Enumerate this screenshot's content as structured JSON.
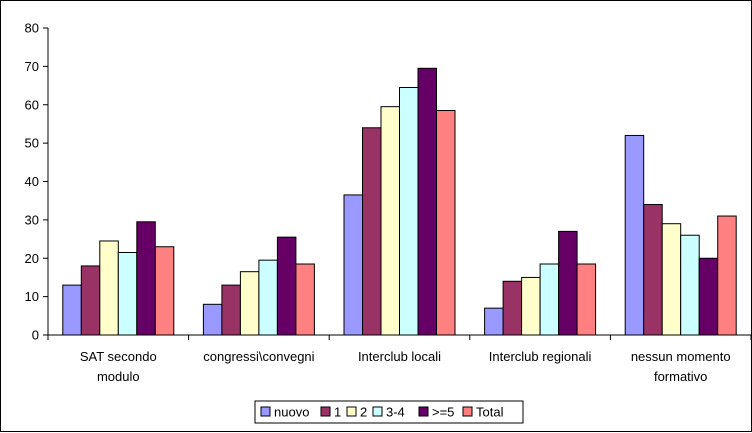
{
  "chart_data": {
    "type": "bar",
    "title": "",
    "xlabel": "",
    "ylabel": "",
    "ylim": [
      0,
      80
    ],
    "yticks": [
      0,
      10,
      20,
      30,
      40,
      50,
      60,
      70,
      80
    ],
    "grid": false,
    "legend_position": "bottom",
    "categories": [
      [
        "SAT secondo",
        "modulo"
      ],
      [
        "congressi\\convegni"
      ],
      [
        "Interclub locali"
      ],
      [
        "Interclub regionali"
      ],
      [
        "nessun momento",
        "formativo"
      ]
    ],
    "series": [
      {
        "name": "nuovo",
        "color": "#9999ff",
        "values": [
          13,
          8,
          36.5,
          7,
          52
        ]
      },
      {
        "name": "1",
        "color": "#993366",
        "values": [
          18,
          13,
          54,
          14,
          34
        ]
      },
      {
        "name": "2",
        "color": "#ffffcc",
        "values": [
          24.5,
          16.5,
          59.5,
          15,
          29
        ]
      },
      {
        "name": "3-4",
        "color": "#ccffff",
        "values": [
          21.5,
          19.5,
          64.5,
          18.5,
          26
        ]
      },
      {
        "name": ">=5",
        "color": "#660066",
        "values": [
          29.5,
          25.5,
          69.5,
          27,
          20
        ]
      },
      {
        "name": "Total",
        "color": "#ff8080",
        "values": [
          23,
          18.5,
          58.5,
          18.5,
          31
        ]
      }
    ]
  }
}
